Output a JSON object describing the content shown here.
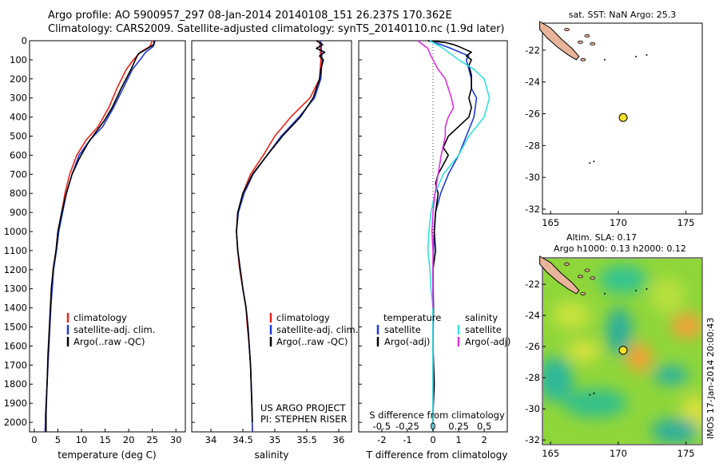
{
  "header": {
    "line1": "Argo profile: AO 5900957_297 08-Jan-2014 20140108_151 26.237S 170.362E",
    "line2": "Climatology: CARS2009. Satellite-adjusted climatology: synTS_20140110.nc (1.9d later)"
  },
  "credits": {
    "project": "US ARGO PROJECT",
    "pi": "PI: STEPHEN RISER"
  },
  "map_top_title": "sat. SST: NaN Argo: 25.3",
  "map_bottom_title1": "Altim. SLA: 0.17",
  "map_bottom_title2": "Argo h1000: 0.13 h2000: 0.12",
  "side_label": "IMOS 17-Jan-2014 20:00:43",
  "colors": {
    "climatology": "#e8231a",
    "satellite": "#1e3ad8",
    "argo": "#000000",
    "salinity_sat": "#33e0e0",
    "salinity_argo": "#e030e0",
    "argo_marker": "#f2e22a",
    "land": "#e8b49a"
  },
  "chart_data": [
    {
      "type": "line",
      "name": "temperature",
      "xlabel": "temperature (deg C)",
      "ylabel": "",
      "xlim": [
        -1,
        32
      ],
      "ylim": [
        2050,
        0
      ],
      "xticks": [
        0,
        5,
        10,
        15,
        20,
        25,
        30
      ],
      "yticks": [
        0,
        100,
        200,
        300,
        400,
        500,
        600,
        700,
        800,
        900,
        1000,
        1100,
        1200,
        1300,
        1400,
        1500,
        1600,
        1700,
        1800,
        1900,
        2000
      ],
      "legend": [
        "climatology",
        "satellite-adj. clim.",
        "Argo(..raw -QC)"
      ],
      "series": [
        {
          "name": "climatology",
          "points": [
            [
              25.0,
              0
            ],
            [
              24.5,
              30
            ],
            [
              22.5,
              60
            ],
            [
              21.0,
              100
            ],
            [
              19.5,
              150
            ],
            [
              17.5,
              250
            ],
            [
              15.8,
              350
            ],
            [
              13.5,
              450
            ],
            [
              11.0,
              520
            ],
            [
              9.0,
              600
            ],
            [
              7.5,
              700
            ],
            [
              6.5,
              800
            ],
            [
              5.8,
              900
            ],
            [
              5.0,
              1000
            ],
            [
              4.6,
              1100
            ],
            [
              4.0,
              1200
            ],
            [
              3.7,
              1300
            ],
            [
              3.5,
              1400
            ],
            [
              3.3,
              1500
            ],
            [
              3.0,
              1650
            ],
            [
              2.7,
              1800
            ],
            [
              2.4,
              1950
            ],
            [
              2.3,
              2050
            ]
          ]
        },
        {
          "name": "satellite-adj. clim.",
          "points": [
            [
              25.6,
              0
            ],
            [
              25.2,
              30
            ],
            [
              23.6,
              60
            ],
            [
              22.4,
              100
            ],
            [
              20.8,
              150
            ],
            [
              18.8,
              250
            ],
            [
              16.8,
              350
            ],
            [
              14.5,
              450
            ],
            [
              11.8,
              520
            ],
            [
              9.5,
              600
            ],
            [
              8.0,
              700
            ],
            [
              6.8,
              800
            ],
            [
              6.0,
              900
            ],
            [
              5.2,
              1000
            ],
            [
              4.7,
              1100
            ],
            [
              4.1,
              1200
            ],
            [
              3.8,
              1300
            ],
            [
              3.5,
              1400
            ],
            [
              3.3,
              1500
            ],
            [
              3.0,
              1650
            ],
            [
              2.7,
              1800
            ],
            [
              2.4,
              1950
            ],
            [
              2.3,
              2050
            ]
          ]
        },
        {
          "name": "Argo(..raw -QC)",
          "points": [
            [
              25.4,
              0
            ],
            [
              25.3,
              20
            ],
            [
              24.0,
              40
            ],
            [
              22.0,
              70
            ],
            [
              21.4,
              100
            ],
            [
              20.5,
              150
            ],
            [
              18.4,
              250
            ],
            [
              16.5,
              350
            ],
            [
              14.8,
              420
            ],
            [
              13.0,
              480
            ],
            [
              11.3,
              540
            ],
            [
              9.5,
              620
            ],
            [
              8.0,
              700
            ],
            [
              6.8,
              800
            ],
            [
              5.8,
              900
            ],
            [
              5.0,
              1000
            ],
            [
              4.6,
              1100
            ],
            [
              4.0,
              1200
            ],
            [
              3.6,
              1300
            ],
            [
              3.4,
              1400
            ],
            [
              3.2,
              1500
            ],
            [
              2.9,
              1650
            ],
            [
              2.7,
              1800
            ],
            [
              2.5,
              1950
            ],
            [
              2.5,
              2050
            ]
          ]
        }
      ]
    },
    {
      "type": "line",
      "name": "salinity",
      "xlabel": "salinity",
      "ylabel": "",
      "xlim": [
        33.7,
        36.2
      ],
      "ylim": [
        2050,
        0
      ],
      "xticks": [
        34,
        34.5,
        35,
        35.5,
        36
      ],
      "legend": [
        "climatology",
        "satellite-adj. clim.",
        "Argo(..raw -QC)"
      ],
      "series": [
        {
          "name": "climatology",
          "points": [
            [
              35.7,
              0
            ],
            [
              35.72,
              100
            ],
            [
              35.7,
              200
            ],
            [
              35.55,
              300
            ],
            [
              35.25,
              400
            ],
            [
              35.0,
              500
            ],
            [
              34.82,
              600
            ],
            [
              34.62,
              700
            ],
            [
              34.5,
              800
            ],
            [
              34.42,
              900
            ],
            [
              34.4,
              1000
            ],
            [
              34.42,
              1100
            ],
            [
              34.45,
              1200
            ],
            [
              34.5,
              1300
            ],
            [
              34.55,
              1400
            ],
            [
              34.57,
              1500
            ],
            [
              34.6,
              1600
            ],
            [
              34.62,
              1700
            ],
            [
              34.63,
              1800
            ],
            [
              34.64,
              1900
            ],
            [
              34.65,
              2050
            ]
          ]
        },
        {
          "name": "satellite-adj. clim.",
          "points": [
            [
              35.72,
              0
            ],
            [
              35.74,
              100
            ],
            [
              35.72,
              200
            ],
            [
              35.62,
              300
            ],
            [
              35.38,
              400
            ],
            [
              35.1,
              500
            ],
            [
              34.88,
              600
            ],
            [
              34.66,
              700
            ],
            [
              34.52,
              800
            ],
            [
              34.43,
              900
            ],
            [
              34.4,
              1000
            ],
            [
              34.42,
              1100
            ],
            [
              34.46,
              1200
            ],
            [
              34.5,
              1300
            ],
            [
              34.55,
              1400
            ],
            [
              34.58,
              1500
            ],
            [
              34.6,
              1600
            ],
            [
              34.62,
              1700
            ],
            [
              34.63,
              1800
            ],
            [
              34.64,
              1900
            ],
            [
              34.65,
              2050
            ]
          ]
        },
        {
          "name": "Argo(..raw -QC)",
          "points": [
            [
              35.65,
              0
            ],
            [
              35.75,
              20
            ],
            [
              35.65,
              40
            ],
            [
              35.78,
              60
            ],
            [
              35.7,
              80
            ],
            [
              35.76,
              100
            ],
            [
              35.72,
              150
            ],
            [
              35.7,
              200
            ],
            [
              35.6,
              300
            ],
            [
              35.4,
              400
            ],
            [
              35.12,
              500
            ],
            [
              34.88,
              600
            ],
            [
              34.65,
              700
            ],
            [
              34.5,
              800
            ],
            [
              34.42,
              900
            ],
            [
              34.4,
              1000
            ],
            [
              34.42,
              1100
            ],
            [
              34.46,
              1200
            ],
            [
              34.5,
              1300
            ],
            [
              34.55,
              1400
            ],
            [
              34.58,
              1500
            ],
            [
              34.6,
              1600
            ],
            [
              34.62,
              1700
            ],
            [
              34.63,
              1800
            ],
            [
              34.64,
              1900
            ],
            [
              34.65,
              2000
            ]
          ]
        }
      ]
    },
    {
      "type": "line",
      "name": "differences",
      "xlabel": "T difference from climatology",
      "xlabel2": "S difference from climatology",
      "xlim": [
        -2.9,
        2.9
      ],
      "ylim": [
        2050,
        0
      ],
      "xticks": [
        -2,
        -1,
        0,
        1,
        2
      ],
      "xticks_s": [
        "-0.5",
        "-0.25",
        "0",
        "0.25",
        "0.5"
      ],
      "legend_titles": [
        "temperature",
        "salinity"
      ],
      "legend": [
        "satellite",
        "Argo(-adj)",
        "satellite",
        "Argo(-adj)"
      ],
      "series": [
        {
          "name": "temperature satellite",
          "points": [
            [
              -0.2,
              0
            ],
            [
              0.3,
              20
            ],
            [
              0.7,
              40
            ],
            [
              1.4,
              80
            ],
            [
              1.3,
              100
            ],
            [
              1.5,
              200
            ],
            [
              1.5,
              250
            ],
            [
              1.7,
              300
            ],
            [
              1.6,
              400
            ],
            [
              1.3,
              500
            ],
            [
              1.0,
              600
            ],
            [
              0.6,
              700
            ],
            [
              0.3,
              800
            ],
            [
              0.1,
              900
            ],
            [
              0.05,
              1000
            ],
            [
              0.02,
              1100
            ],
            [
              0.0,
              1200
            ],
            [
              0.0,
              1400
            ],
            [
              0.0,
              1600
            ],
            [
              0.0,
              1800
            ],
            [
              0.0,
              2050
            ]
          ]
        },
        {
          "name": "temperature Argo(-adj)",
          "points": [
            [
              -0.2,
              0
            ],
            [
              0.5,
              10
            ],
            [
              0.8,
              20
            ],
            [
              1.0,
              30
            ],
            [
              1.5,
              60
            ],
            [
              1.3,
              80
            ],
            [
              1.5,
              100
            ],
            [
              1.4,
              130
            ],
            [
              1.5,
              180
            ],
            [
              1.5,
              250
            ],
            [
              1.4,
              300
            ],
            [
              1.5,
              350
            ],
            [
              1.4,
              400
            ],
            [
              1.0,
              450
            ],
            [
              0.6,
              500
            ],
            [
              0.4,
              560
            ],
            [
              0.6,
              600
            ],
            [
              0.4,
              650
            ],
            [
              0.2,
              700
            ],
            [
              0.1,
              750
            ],
            [
              0.2,
              800
            ],
            [
              0.1,
              900
            ],
            [
              0.05,
              1000
            ],
            [
              0.1,
              1100
            ],
            [
              0.0,
              1200
            ],
            [
              0.02,
              1400
            ],
            [
              0.0,
              1600
            ],
            [
              0.05,
              1800
            ],
            [
              0.0,
              1950
            ],
            [
              0.0,
              2000
            ]
          ]
        },
        {
          "name": "salinity satellite",
          "points": [
            [
              -0.03,
              0
            ],
            [
              0.1,
              40
            ],
            [
              0.25,
              100
            ],
            [
              0.4,
              150
            ],
            [
              0.5,
              200
            ],
            [
              0.55,
              300
            ],
            [
              0.5,
              400
            ],
            [
              0.35,
              500
            ],
            [
              0.25,
              600
            ],
            [
              0.1,
              700
            ],
            [
              0.02,
              800
            ],
            [
              -0.02,
              900
            ],
            [
              -0.04,
              1000
            ],
            [
              -0.05,
              1100
            ],
            [
              -0.03,
              1200
            ],
            [
              -0.02,
              1300
            ],
            [
              0.0,
              1400
            ],
            [
              0.0,
              1600
            ],
            [
              0.0,
              1800
            ],
            [
              0.0,
              2050
            ]
          ]
        },
        {
          "name": "salinity Argo(-adj)",
          "points": [
            [
              -0.15,
              0
            ],
            [
              -0.1,
              20
            ],
            [
              -0.05,
              40
            ],
            [
              -0.02,
              80
            ],
            [
              0.0,
              100
            ],
            [
              0.05,
              150
            ],
            [
              0.12,
              200
            ],
            [
              0.15,
              250
            ],
            [
              0.18,
              300
            ],
            [
              0.2,
              350
            ],
            [
              0.15,
              400
            ],
            [
              0.12,
              450
            ],
            [
              0.12,
              500
            ],
            [
              0.08,
              600
            ],
            [
              0.05,
              700
            ],
            [
              0.02,
              800
            ],
            [
              0.0,
              900
            ],
            [
              -0.01,
              1000
            ],
            [
              0.0,
              1100
            ],
            [
              0.0,
              1200
            ],
            [
              0.0,
              1300
            ],
            [
              0.0,
              1400
            ]
          ]
        }
      ]
    },
    {
      "type": "scatter",
      "name": "location map SST",
      "xlim": [
        164.4,
        176.2
      ],
      "ylim": [
        -32.3,
        -20.3
      ],
      "xticks": [
        165,
        170,
        175
      ],
      "yticks": [
        -22,
        -24,
        -26,
        -28,
        -30,
        -32
      ],
      "points": [
        [
          170.362,
          -26.237
        ]
      ]
    },
    {
      "type": "heatmap",
      "name": "location map SLA",
      "xlim": [
        164.4,
        176.2
      ],
      "ylim": [
        -32.3,
        -20.3
      ],
      "xticks": [
        165,
        170,
        175
      ],
      "yticks": [
        -22,
        -24,
        -26,
        -28,
        -30,
        -32
      ],
      "points": [
        [
          170.362,
          -26.237
        ]
      ]
    }
  ]
}
